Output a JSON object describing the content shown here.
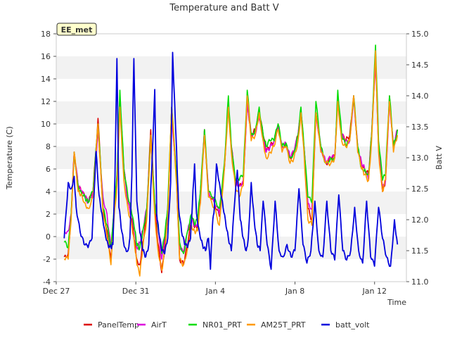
{
  "chart_data": {
    "type": "line",
    "title": "Temperature and Batt V",
    "xlabel": "Time",
    "ylabel": "Temperature (C)",
    "y2label": "Batt V",
    "station_label": "EE_met",
    "x_domain": [
      0,
      17.6
    ],
    "x_ticks": [
      {
        "label": "Dec 27",
        "day": 0
      },
      {
        "label": "Dec 31",
        "day": 4
      },
      {
        "label": "Jan 4",
        "day": 8
      },
      {
        "label": "Jan 8",
        "day": 12
      },
      {
        "label": "Jan 12",
        "day": 16
      }
    ],
    "y_ticks": [
      -4,
      -2,
      0,
      2,
      4,
      6,
      8,
      10,
      12,
      14,
      16,
      18
    ],
    "ylim": [
      -4,
      18
    ],
    "y2_ticks": [
      11.0,
      11.5,
      12.0,
      12.5,
      13.0,
      13.5,
      14.0,
      14.5,
      15.0
    ],
    "y2_tick_labels": [
      "11.0",
      "11.5",
      "12.0",
      "12.5",
      "13.0",
      "13.5",
      "14.0",
      "14.5",
      "15.0"
    ],
    "y2lim": [
      11.0,
      15.0
    ],
    "grid": "horizontal alternating bands",
    "legend_position": "bottom",
    "series": [
      {
        "name": "PanelTemp",
        "color": "#dd0000",
        "axis": "left",
        "offset": 0.15,
        "x": [
          0.4,
          0.6,
          0.75,
          0.9,
          1.1,
          1.25,
          1.45,
          1.6,
          1.85,
          2.1,
          2.35,
          2.55,
          2.75,
          2.9,
          3.05,
          3.2,
          3.4,
          3.6,
          3.8,
          3.95,
          4.05,
          4.2,
          4.35,
          4.55,
          4.75,
          4.95,
          5.1,
          5.3,
          5.45,
          5.6,
          5.8,
          6.05,
          6.2,
          6.4,
          6.6,
          6.8,
          6.95,
          7.1,
          7.25,
          7.45,
          7.65,
          7.95,
          8.2,
          8.45,
          8.65,
          8.8,
          9.0,
          9.2,
          9.4,
          9.6,
          9.8,
          10.0,
          10.2,
          10.4,
          10.55,
          10.75,
          10.95,
          11.15,
          11.35,
          11.55,
          11.75,
          11.95,
          12.15,
          12.3,
          12.45,
          12.65,
          12.85,
          13.05,
          13.3,
          13.55,
          13.8,
          14.0,
          14.15,
          14.35,
          14.55,
          14.75,
          14.95,
          15.15,
          15.35,
          15.5,
          15.7,
          15.85,
          16.05,
          16.2,
          16.4,
          16.55,
          16.75,
          16.95,
          17.15
        ],
        "y": [
          -1.8,
          -1.5,
          2,
          7.5,
          4.5,
          4,
          3.5,
          3,
          4,
          10.5,
          2.5,
          0.5,
          -2,
          2,
          5,
          12,
          6,
          3,
          1.5,
          -0.5,
          -2,
          -2.5,
          -0.5,
          2,
          9.5,
          2.5,
          -0.5,
          -3.2,
          -1,
          2,
          11.5,
          5,
          -2,
          -2.5,
          -0.8,
          1.5,
          0.8,
          1,
          4,
          9.5,
          4,
          3,
          1.8,
          6,
          11.5,
          8,
          5,
          4.5,
          5,
          12,
          9,
          9.5,
          11,
          9,
          7.5,
          8,
          8.5,
          10,
          8,
          8.3,
          7,
          7.5,
          9,
          11,
          8,
          2.5,
          1.5,
          11,
          8,
          6.5,
          7,
          7,
          12,
          9,
          8.5,
          9,
          12.5,
          8,
          6.5,
          6,
          5.5,
          9,
          15.5,
          8,
          4,
          5,
          12.5,
          8,
          9.5
        ]
      },
      {
        "name": "AirT",
        "color": "#dd00dd",
        "axis": "left",
        "offset": 0.7,
        "x": [
          0.4,
          0.6,
          0.75,
          0.9,
          1.1,
          1.25,
          1.45,
          1.6,
          1.85,
          2.1,
          2.35,
          2.55,
          2.75,
          2.9,
          3.05,
          3.2,
          3.4,
          3.6,
          3.8,
          3.95,
          4.05,
          4.2,
          4.35,
          4.55,
          4.75,
          4.95,
          5.1,
          5.3,
          5.45,
          5.6,
          5.8,
          6.05,
          6.2,
          6.4,
          6.6,
          6.8,
          6.95,
          7.1,
          7.25,
          7.45,
          7.65,
          7.95,
          8.2,
          8.45,
          8.65,
          8.8,
          9.0,
          9.2,
          9.4,
          9.6,
          9.8,
          10.0,
          10.2,
          10.4,
          10.55,
          10.75,
          10.95,
          11.15,
          11.35,
          11.55,
          11.75,
          11.95,
          12.15,
          12.3,
          12.45,
          12.65,
          12.85,
          13.05,
          13.3,
          13.55,
          13.8,
          14.0,
          14.15,
          14.35,
          14.55,
          14.75,
          14.95,
          15.15,
          15.35,
          15.5,
          15.7,
          15.85,
          16.05,
          16.2,
          16.4,
          16.55,
          16.75,
          16.95,
          17.15
        ],
        "y": [
          0.5,
          0.5,
          2,
          7.5,
          4.5,
          4,
          3.5,
          3,
          4,
          9.5,
          3.5,
          2,
          -1,
          2,
          5,
          12,
          6,
          3,
          2,
          0.5,
          -1,
          -0.5,
          0.5,
          2.5,
          8.5,
          3,
          1,
          -2,
          0,
          2.5,
          11,
          5,
          -1,
          -1.5,
          0.5,
          1.5,
          1,
          1.2,
          4,
          9.5,
          4,
          3,
          2,
          6,
          11.5,
          8,
          5,
          4.5,
          5,
          12,
          9,
          9,
          10.5,
          8.5,
          7.5,
          8,
          8.5,
          10,
          8,
          8.3,
          7,
          7.5,
          9,
          11,
          8,
          3,
          2.5,
          11,
          8,
          6.5,
          7,
          7,
          12,
          9,
          8.5,
          8.5,
          12.5,
          8,
          6.5,
          6,
          5,
          9,
          15.5,
          8,
          4.5,
          5,
          12,
          8,
          9.5
        ]
      },
      {
        "name": "NR01_PRT",
        "color": "#00dd00",
        "axis": "left",
        "offset": 0.35,
        "x": [
          0.4,
          0.6,
          0.75,
          0.9,
          1.1,
          1.25,
          1.45,
          1.6,
          1.85,
          2.1,
          2.35,
          2.55,
          2.75,
          2.9,
          3.05,
          3.2,
          3.4,
          3.6,
          3.8,
          3.95,
          4.05,
          4.2,
          4.35,
          4.55,
          4.75,
          4.95,
          5.1,
          5.3,
          5.45,
          5.6,
          5.8,
          6.05,
          6.2,
          6.4,
          6.6,
          6.8,
          6.95,
          7.1,
          7.25,
          7.45,
          7.65,
          7.95,
          8.2,
          8.45,
          8.65,
          8.8,
          9.0,
          9.2,
          9.4,
          9.6,
          9.8,
          10.0,
          10.2,
          10.4,
          10.55,
          10.75,
          10.95,
          11.15,
          11.35,
          11.55,
          11.75,
          11.95,
          12.15,
          12.3,
          12.45,
          12.65,
          12.85,
          13.05,
          13.3,
          13.55,
          13.8,
          14.0,
          14.15,
          14.35,
          14.55,
          14.75,
          14.95,
          15.15,
          15.35,
          15.5,
          15.7,
          15.85,
          16.05,
          16.2,
          16.4,
          16.55,
          16.75,
          16.95,
          17.15
        ],
        "y": [
          -0.5,
          -1,
          2,
          7.5,
          4.5,
          4,
          3.5,
          3,
          4,
          10,
          2.5,
          1,
          -1,
          2.5,
          5.5,
          13,
          6,
          3.5,
          2,
          0.5,
          -0.8,
          -1,
          0.5,
          2.5,
          9,
          3,
          1,
          -1.5,
          0,
          2.5,
          11.5,
          5.5,
          -0.5,
          -1.5,
          0.5,
          2,
          1,
          1.5,
          4,
          9.5,
          4,
          3.5,
          2.5,
          6.5,
          12.5,
          8,
          5,
          5,
          5.5,
          13,
          9,
          9.5,
          11.5,
          9,
          8,
          8.5,
          8.5,
          10,
          8,
          8.3,
          7,
          7.5,
          9,
          11.5,
          8,
          3.5,
          3,
          12,
          8,
          6.5,
          7,
          7,
          13,
          9,
          8,
          8.5,
          12.5,
          8,
          6,
          6,
          5.5,
          9,
          17,
          8.5,
          5,
          5.5,
          12.5,
          8,
          9.5
        ]
      },
      {
        "name": "AM25T_PRT",
        "color": "#ff9900",
        "axis": "left",
        "offset": 0.5,
        "x": [
          0.4,
          0.6,
          0.75,
          0.9,
          1.1,
          1.25,
          1.45,
          1.6,
          1.85,
          2.1,
          2.35,
          2.55,
          2.75,
          2.9,
          3.05,
          3.2,
          3.4,
          3.6,
          3.8,
          3.95,
          4.05,
          4.2,
          4.35,
          4.55,
          4.75,
          4.95,
          5.1,
          5.3,
          5.45,
          5.6,
          5.8,
          6.05,
          6.2,
          6.4,
          6.6,
          6.8,
          6.95,
          7.1,
          7.25,
          7.45,
          7.65,
          7.95,
          8.2,
          8.45,
          8.65,
          8.8,
          9.0,
          9.2,
          9.4,
          9.6,
          9.8,
          10.0,
          10.2,
          10.4,
          10.55,
          10.75,
          10.95,
          11.15,
          11.35,
          11.55,
          11.75,
          11.95,
          12.15,
          12.3,
          12.45,
          12.65,
          12.85,
          13.05,
          13.3,
          13.55,
          13.8,
          14.0,
          14.15,
          14.35,
          14.55,
          14.75,
          14.95,
          15.15,
          15.35,
          15.5,
          15.7,
          15.85,
          16.05,
          16.2,
          16.4,
          16.55,
          16.75,
          16.95,
          17.15
        ],
        "y": [
          -2,
          -2,
          1.5,
          7.5,
          4,
          3.8,
          3,
          2.5,
          3.5,
          10,
          2,
          0,
          -2.5,
          1.5,
          4.5,
          11.5,
          5,
          2.5,
          1,
          -1,
          -2.5,
          -3.5,
          -1,
          1.5,
          9,
          2,
          -1,
          -3,
          -1.5,
          1.5,
          11.5,
          4.5,
          -2,
          -2.5,
          -1,
          1,
          0.5,
          0.5,
          3,
          9,
          3.5,
          2.5,
          1,
          6,
          11.5,
          7.5,
          4.5,
          3.5,
          4.5,
          12.5,
          8.5,
          9,
          11,
          8.5,
          7,
          7.5,
          8,
          9.5,
          7.5,
          8,
          6.5,
          7,
          8.5,
          11,
          7.5,
          1.5,
          1,
          11,
          7.5,
          6.5,
          6.5,
          7,
          12,
          8.5,
          8,
          8.5,
          12.5,
          7.5,
          6,
          5.5,
          5,
          8.5,
          16.5,
          7.5,
          4,
          5,
          12,
          7.5,
          9
        ]
      },
      {
        "name": "batt_volt",
        "color": "#0000dd",
        "axis": "right",
        "offset": 0.25,
        "x": [
          0.4,
          0.6,
          0.75,
          0.9,
          1.0,
          1.2,
          1.4,
          1.6,
          1.8,
          2.0,
          2.15,
          2.3,
          2.45,
          2.6,
          2.75,
          2.85,
          2.95,
          3.05,
          3.15,
          3.3,
          3.45,
          3.6,
          3.7,
          3.8,
          3.9,
          4.05,
          4.2,
          4.35,
          4.5,
          4.65,
          4.75,
          4.85,
          4.95,
          5.05,
          5.15,
          5.3,
          5.45,
          5.6,
          5.75,
          5.85,
          5.95,
          6.05,
          6.15,
          6.3,
          6.45,
          6.6,
          6.75,
          6.85,
          6.95,
          7.05,
          7.2,
          7.35,
          7.5,
          7.65,
          7.75,
          7.85,
          7.95,
          8.05,
          8.2,
          8.35,
          8.5,
          8.65,
          8.8,
          8.95,
          9.1,
          9.25,
          9.4,
          9.55,
          9.65,
          9.8,
          9.95,
          10.1,
          10.25,
          10.4,
          10.6,
          10.8,
          11.0,
          11.2,
          11.4,
          11.6,
          11.8,
          12.0,
          12.2,
          12.4,
          12.6,
          12.8,
          13.0,
          13.2,
          13.4,
          13.6,
          13.8,
          14.0,
          14.2,
          14.4,
          14.6,
          14.8,
          15.0,
          15.2,
          15.4,
          15.6,
          15.8,
          16.0,
          16.2,
          16.4,
          16.6,
          16.8,
          17.0,
          17.15
        ],
        "y": [
          11.7,
          12.6,
          12.5,
          12.7,
          12.2,
          11.8,
          11.6,
          11.55,
          11.7,
          13.1,
          12.4,
          12.1,
          11.8,
          11.6,
          11.55,
          11.6,
          12.7,
          14.6,
          12.2,
          11.8,
          11.55,
          11.5,
          11.7,
          12.7,
          14.6,
          12.3,
          11.8,
          11.5,
          11.4,
          11.6,
          12.5,
          13.2,
          14.1,
          12.1,
          11.8,
          11.5,
          11.45,
          11.7,
          12.6,
          14.7,
          13.9,
          13.1,
          12.2,
          11.8,
          11.6,
          11.55,
          11.7,
          12.3,
          12.9,
          12.1,
          11.8,
          11.6,
          11.5,
          11.7,
          11.2,
          11.9,
          12.2,
          12.9,
          12.6,
          12.3,
          12.0,
          11.7,
          11.5,
          12.2,
          12.8,
          12.0,
          11.7,
          11.5,
          11.7,
          12.6,
          12.0,
          11.6,
          11.5,
          12.3,
          11.6,
          11.2,
          12.3,
          11.5,
          11.4,
          11.6,
          11.4,
          11.5,
          12.5,
          11.6,
          11.3,
          11.5,
          12.3,
          11.5,
          11.4,
          12.3,
          11.5,
          11.35,
          12.4,
          11.5,
          11.35,
          11.5,
          12.2,
          11.5,
          11.3,
          12.3,
          11.4,
          11.25,
          12.2,
          11.7,
          11.4,
          11.25,
          12.0,
          11.6
        ]
      }
    ]
  }
}
